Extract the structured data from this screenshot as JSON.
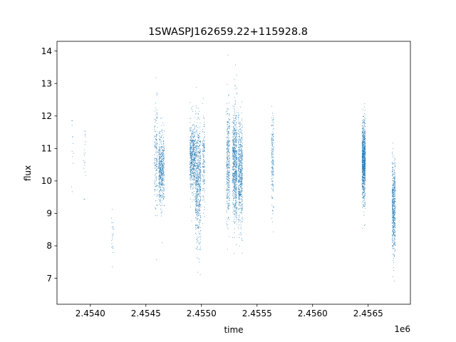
{
  "chart_data": {
    "type": "scatter",
    "title": "1SWASPJ162659.22+115928.8",
    "xlabel": "time",
    "ylabel": "flux",
    "x_offset_text": "1e6",
    "x_unit_scale": 1000000,
    "xlim": [
      2.4537,
      2.45688
    ],
    "ylim": [
      6.2,
      14.3
    ],
    "xticks": [
      2.454,
      2.4545,
      2.455,
      2.4555,
      2.456,
      2.4565
    ],
    "xtick_labels": [
      "2.4540",
      "2.4545",
      "2.4550",
      "2.4555",
      "2.4560",
      "2.4565"
    ],
    "yticks": [
      7,
      8,
      9,
      10,
      11,
      12,
      13,
      14
    ],
    "ytick_labels": [
      "7",
      "8",
      "9",
      "10",
      "11",
      "12",
      "13",
      "14"
    ],
    "grid": false,
    "point_color": "#1f77b4",
    "clusters": [
      {
        "x": 2.45384,
        "width": 2e-05,
        "center": 11.2,
        "spread": 0.5,
        "count": 12
      },
      {
        "x": 2.45395,
        "width": 2e-05,
        "center": 10.8,
        "spread": 0.8,
        "count": 20
      },
      {
        "x": 2.4542,
        "width": 2e-05,
        "center": 8.4,
        "spread": 0.5,
        "count": 22
      },
      {
        "x": 2.45459,
        "width": 3e-05,
        "center": 10.8,
        "spread": 0.8,
        "count": 170
      },
      {
        "x": 2.45464,
        "width": 5e-05,
        "center": 10.4,
        "spread": 0.55,
        "count": 520
      },
      {
        "x": 2.45492,
        "width": 5e-05,
        "center": 10.7,
        "spread": 0.5,
        "count": 520
      },
      {
        "x": 2.45497,
        "width": 5e-05,
        "center": 10.0,
        "spread": 0.9,
        "count": 620
      },
      {
        "x": 2.45502,
        "width": 2e-05,
        "center": 10.7,
        "spread": 0.7,
        "count": 140
      },
      {
        "x": 2.45524,
        "width": 3e-05,
        "center": 10.5,
        "spread": 0.9,
        "count": 360
      },
      {
        "x": 2.4553,
        "width": 4e-05,
        "center": 10.5,
        "spread": 0.85,
        "count": 720
      },
      {
        "x": 2.45535,
        "width": 4e-05,
        "center": 10.2,
        "spread": 0.8,
        "count": 560
      },
      {
        "x": 2.45564,
        "width": 2e-05,
        "center": 10.6,
        "spread": 0.7,
        "count": 170
      },
      {
        "x": 2.45646,
        "width": 3e-05,
        "center": 10.6,
        "spread": 0.6,
        "count": 900
      },
      {
        "x": 2.45673,
        "width": 3e-05,
        "center": 9.1,
        "spread": 0.7,
        "count": 520
      }
    ]
  }
}
